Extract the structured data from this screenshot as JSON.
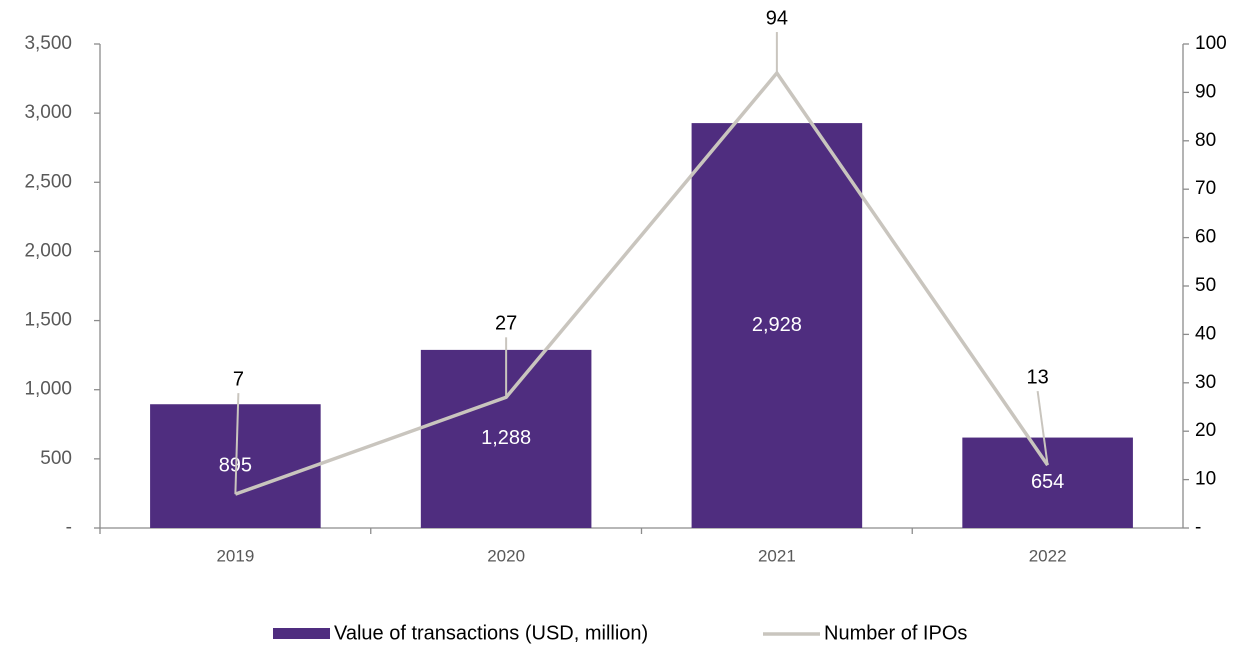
{
  "chart_data": {
    "type": "bar",
    "categories": [
      "2019",
      "2020",
      "2021",
      "2022"
    ],
    "series": [
      {
        "name": "Value of transactions (USD, million)",
        "type": "bar",
        "axis": "y",
        "color": "#4f2d7f",
        "values": [
          895,
          1288,
          2928,
          654
        ],
        "value_labels": [
          "895",
          "1,288",
          "2,928",
          "654"
        ]
      },
      {
        "name": "Number of IPOs",
        "type": "line",
        "axis": "y2",
        "color": "#c9c5be",
        "values": [
          7,
          27,
          94,
          13
        ]
      }
    ],
    "ylim": [
      0,
      3500
    ],
    "yticks": [
      {
        "value": 0,
        "label": "-"
      },
      500,
      {
        "value": 1000,
        "label": "1,000"
      },
      {
        "value": 1500,
        "label": "1,500"
      },
      {
        "value": 2000,
        "label": "2,000"
      },
      {
        "value": 2500,
        "label": "2,500"
      },
      {
        "value": 3000,
        "label": "3,000"
      },
      {
        "value": 3500,
        "label": "3,500"
      }
    ],
    "y2lim": [
      0,
      100
    ],
    "y2ticks": [
      {
        "value": 0,
        "label": "-"
      },
      10,
      20,
      30,
      40,
      50,
      60,
      70,
      80,
      90,
      100
    ],
    "legend": "bottom"
  }
}
